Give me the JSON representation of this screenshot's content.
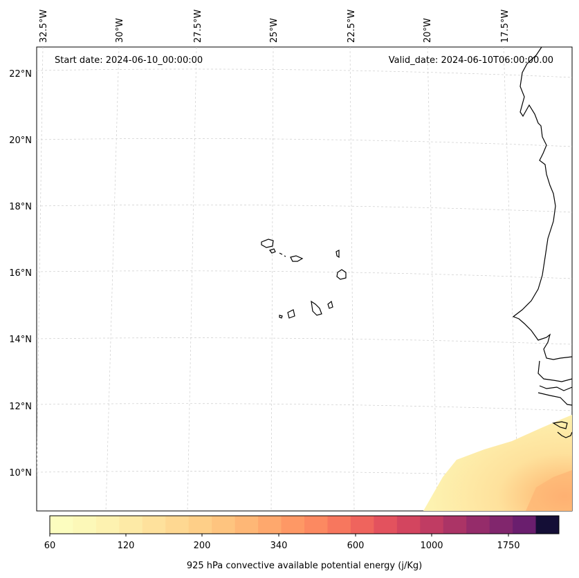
{
  "map": {
    "start_date_label": "Start date: 2024-06-10_00:00:00",
    "valid_date_label": "Valid_date: 2024-06-10T06:00:00.00",
    "lon_labels": [
      "32.5°W",
      "30°W",
      "27.5°W",
      "25°W",
      "22.5°W",
      "20°W",
      "17.5°W"
    ],
    "lat_labels": [
      "22°N",
      "20°N",
      "18°N",
      "16°N",
      "14°N",
      "12°N",
      "10°N"
    ],
    "gridlines": true,
    "coastline_color": "#000000"
  },
  "colorbar": {
    "label": "925 hPa convective available potential energy (j/Kg)",
    "tick_labels": [
      "60",
      "120",
      "200",
      "340",
      "600",
      "1000",
      "1750"
    ],
    "colors": [
      "#fcfdbf",
      "#fcf8b8",
      "#fdf2b0",
      "#fdeaa6",
      "#fee19c",
      "#fed892",
      "#fecf88",
      "#fec47f",
      "#feb776",
      "#fea86d",
      "#fe9865",
      "#fc8961",
      "#f7775e",
      "#ef645d",
      "#e3525e",
      "#d3455f",
      "#c03c63",
      "#ab3466",
      "#952c6a",
      "#81266d",
      "#6a1e6e",
      "#140e36"
    ]
  }
}
